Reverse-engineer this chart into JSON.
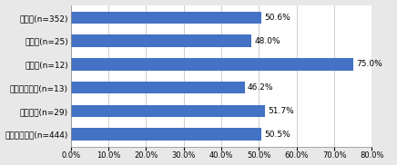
{
  "categories": [
    "回答団体平均(n=444)",
    "都道府県(n=29)",
    "政令指定都市(n=13)",
    "特別区(n=12)",
    "中核市(n=25)",
    "一般市(n=352)"
  ],
  "values": [
    50.5,
    51.7,
    46.2,
    75.0,
    48.0,
    50.6
  ],
  "bar_color": "#4472C4",
  "bar_labels": [
    "50.5%",
    "51.7%",
    "46.2%",
    "75.0%",
    "48.0%",
    "50.6%"
  ],
  "xlim": [
    0,
    80
  ],
  "xticks": [
    0,
    10,
    20,
    30,
    40,
    50,
    60,
    70,
    80
  ],
  "xtick_labels": [
    "0.0%",
    "10.0%",
    "20.0%",
    "30.0%",
    "40.0%",
    "50.0%",
    "60.0%",
    "70.0%",
    "80.0%"
  ],
  "outer_bg_color": "#E8E8E8",
  "plot_bg_color": "#FFFFFF",
  "grid_color": "#BBBBBB",
  "label_fontsize": 6.5,
  "tick_fontsize": 6.0,
  "bar_label_fontsize": 6.5,
  "bar_height": 0.52
}
